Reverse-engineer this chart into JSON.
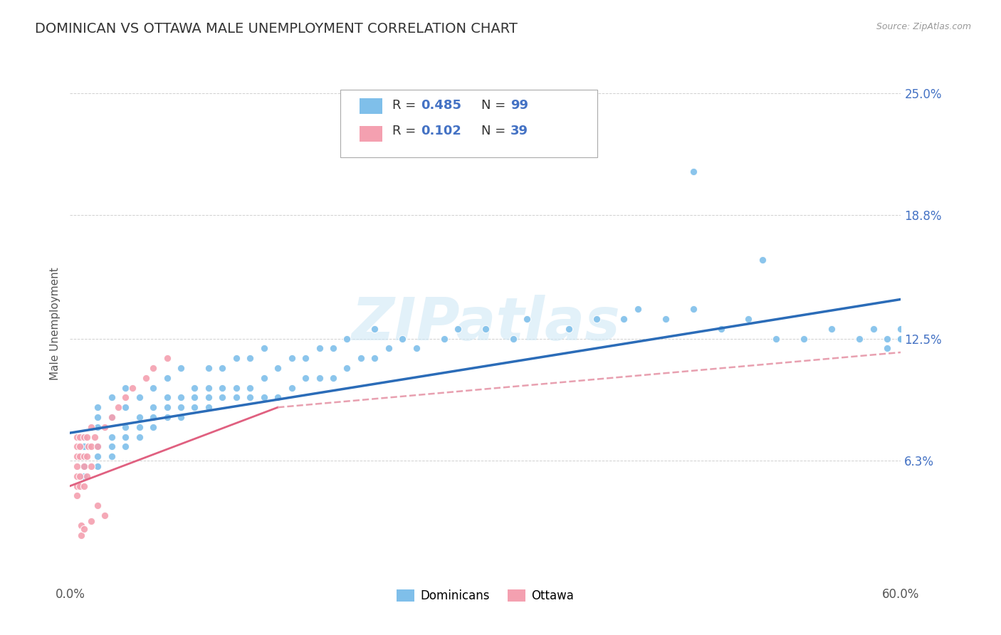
{
  "title": "DOMINICAN VS OTTAWA MALE UNEMPLOYMENT CORRELATION CHART",
  "source": "Source: ZipAtlas.com",
  "ylabel": "Male Unemployment",
  "xlim": [
    0.0,
    0.6
  ],
  "ylim": [
    0.0,
    0.265
  ],
  "yticks": [
    0.063,
    0.125,
    0.188,
    0.25
  ],
  "ytick_labels": [
    "6.3%",
    "12.5%",
    "18.8%",
    "25.0%"
  ],
  "xtick_positions": [
    0.0,
    0.6
  ],
  "xtick_labels": [
    "0.0%",
    "60.0%"
  ],
  "blue_color": "#7fbfea",
  "pink_color": "#f4a0b0",
  "blue_line_color": "#2b6cb8",
  "pink_line_color": "#e06080",
  "pink_dash_color": "#e8a0b0",
  "legend_label1": "Dominicans",
  "legend_label2": "Ottawa",
  "watermark": "ZIPatlas",
  "title_fontsize": 14,
  "axis_label_fontsize": 11,
  "tick_fontsize": 12,
  "background_color": "#ffffff",
  "grid_color": "#d0d0d0",
  "blue_x": [
    0.01,
    0.01,
    0.01,
    0.01,
    0.01,
    0.02,
    0.02,
    0.02,
    0.02,
    0.02,
    0.02,
    0.03,
    0.03,
    0.03,
    0.03,
    0.03,
    0.04,
    0.04,
    0.04,
    0.04,
    0.04,
    0.05,
    0.05,
    0.05,
    0.05,
    0.06,
    0.06,
    0.06,
    0.06,
    0.07,
    0.07,
    0.07,
    0.07,
    0.08,
    0.08,
    0.08,
    0.08,
    0.09,
    0.09,
    0.09,
    0.1,
    0.1,
    0.1,
    0.1,
    0.11,
    0.11,
    0.11,
    0.12,
    0.12,
    0.12,
    0.13,
    0.13,
    0.13,
    0.14,
    0.14,
    0.14,
    0.15,
    0.15,
    0.16,
    0.16,
    0.17,
    0.17,
    0.18,
    0.18,
    0.19,
    0.19,
    0.2,
    0.2,
    0.21,
    0.22,
    0.22,
    0.23,
    0.24,
    0.25,
    0.27,
    0.28,
    0.3,
    0.32,
    0.33,
    0.36,
    0.38,
    0.4,
    0.41,
    0.43,
    0.45,
    0.47,
    0.49,
    0.51,
    0.53,
    0.55,
    0.57,
    0.58,
    0.59,
    0.59,
    0.6,
    0.6,
    0.6,
    0.45,
    0.5
  ],
  "blue_y": [
    0.055,
    0.06,
    0.065,
    0.07,
    0.075,
    0.06,
    0.065,
    0.07,
    0.08,
    0.085,
    0.09,
    0.065,
    0.07,
    0.075,
    0.085,
    0.095,
    0.07,
    0.075,
    0.08,
    0.09,
    0.1,
    0.075,
    0.08,
    0.085,
    0.095,
    0.08,
    0.085,
    0.09,
    0.1,
    0.085,
    0.09,
    0.095,
    0.105,
    0.085,
    0.09,
    0.095,
    0.11,
    0.09,
    0.095,
    0.1,
    0.09,
    0.095,
    0.1,
    0.11,
    0.095,
    0.1,
    0.11,
    0.095,
    0.1,
    0.115,
    0.095,
    0.1,
    0.115,
    0.095,
    0.105,
    0.12,
    0.095,
    0.11,
    0.1,
    0.115,
    0.105,
    0.115,
    0.105,
    0.12,
    0.105,
    0.12,
    0.11,
    0.125,
    0.115,
    0.115,
    0.13,
    0.12,
    0.125,
    0.12,
    0.125,
    0.13,
    0.13,
    0.125,
    0.135,
    0.13,
    0.135,
    0.135,
    0.14,
    0.135,
    0.14,
    0.13,
    0.135,
    0.125,
    0.125,
    0.13,
    0.125,
    0.13,
    0.125,
    0.12,
    0.13,
    0.125,
    0.125,
    0.21,
    0.165
  ],
  "pink_x": [
    0.005,
    0.005,
    0.005,
    0.005,
    0.005,
    0.005,
    0.005,
    0.007,
    0.007,
    0.007,
    0.007,
    0.007,
    0.01,
    0.01,
    0.01,
    0.01,
    0.012,
    0.012,
    0.012,
    0.013,
    0.015,
    0.015,
    0.015,
    0.018,
    0.02,
    0.025,
    0.03,
    0.035,
    0.04,
    0.045,
    0.055,
    0.06,
    0.07,
    0.02,
    0.025,
    0.008,
    0.008,
    0.01,
    0.015
  ],
  "pink_y": [
    0.045,
    0.05,
    0.055,
    0.06,
    0.065,
    0.07,
    0.075,
    0.05,
    0.055,
    0.065,
    0.07,
    0.075,
    0.05,
    0.06,
    0.065,
    0.075,
    0.055,
    0.065,
    0.075,
    0.07,
    0.06,
    0.07,
    0.08,
    0.075,
    0.07,
    0.08,
    0.085,
    0.09,
    0.095,
    0.1,
    0.105,
    0.11,
    0.115,
    0.04,
    0.035,
    0.03,
    0.025,
    0.028,
    0.032
  ]
}
